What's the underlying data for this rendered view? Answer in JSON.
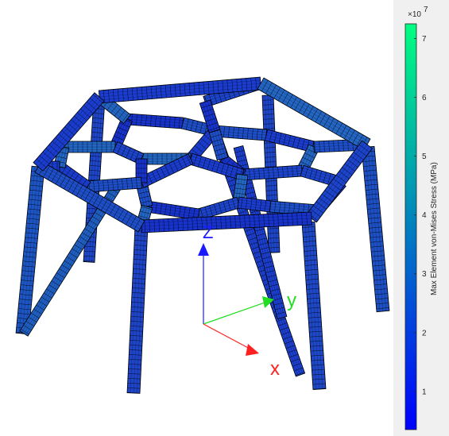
{
  "axes": {
    "z_label": "Z",
    "y_label": "y",
    "x_label": "x",
    "colors": {
      "x": "#ff2020",
      "y": "#22dd22",
      "z": "#1a1aff"
    }
  },
  "model": {
    "edge_color": "#000000",
    "colormap": "winter"
  },
  "colorbar": {
    "title": "Max Element von-Mises Stress (MPa)",
    "exponent_base": "×10",
    "exponent": "7",
    "ticks": [
      "1",
      "2",
      "3",
      "4",
      "5",
      "6",
      "7"
    ],
    "tick_values": [
      1,
      2,
      3,
      4,
      5,
      6,
      7
    ],
    "range": [
      0.35,
      7.25
    ],
    "color_low": "#0000ff",
    "color_high": "#00ff80"
  }
}
